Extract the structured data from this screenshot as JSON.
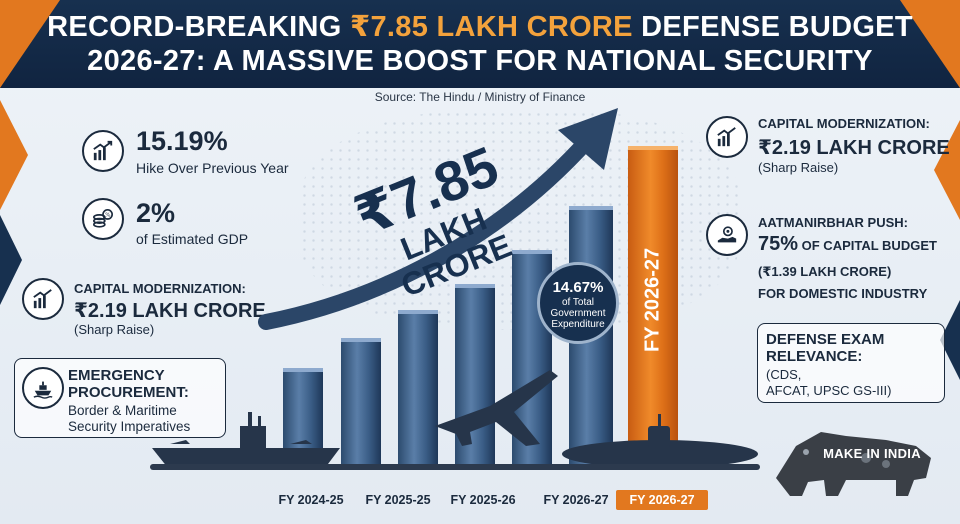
{
  "header": {
    "title_part1": "RECORD-BREAKING ",
    "title_highlight": "₹7.85 LAKH CRORE",
    "title_part2": " DEFENSE BUDGET",
    "title_line2": "2026-27: A MASSIVE BOOST FOR NATIONAL SECURITY"
  },
  "source": "Source: The Hindu / Ministry of Finance",
  "left_stats": {
    "hike": {
      "value": "15.19%",
      "label": "Hike Over Previous Year",
      "icon": "growth-chart-icon"
    },
    "gdp": {
      "value": "2%",
      "label": "of Estimated GDP",
      "icon": "coins-icon"
    },
    "capital": {
      "title": "CAPITAL MODERNIZATION:",
      "value": "₹2.19 LAKH CRORE",
      "note": "(Sharp Raise)",
      "icon": "growth-chart-icon"
    },
    "emergency": {
      "title_line1": "EMERGENCY",
      "title_line2": "PROCUREMENT:",
      "desc_line1": "Border & Maritime",
      "desc_line2": "Security Imperatives",
      "icon": "ship-icon"
    }
  },
  "right_stats": {
    "capital": {
      "title": "CAPITAL MODERNIZATION:",
      "value": "₹2.19 LAKH CRORE",
      "note": "(Sharp Raise)",
      "icon": "growth-chart-icon"
    },
    "aatmanirbhar": {
      "title": "AATMANIRBHAR PUSH:",
      "value": "75%",
      "value_suffix": " OF CAPITAL BUDGET",
      "line2": "(₹1.39 LAKH CRORE)",
      "line3": "FOR DOMESTIC INDUSTRY",
      "icon": "hand-gear-icon"
    },
    "exam": {
      "title_line1": "DEFENSE EXAM",
      "title_line2": "RELEVANCE:",
      "line1": "(CDS,",
      "line2": "AFCAT, UPSC GS-III)"
    }
  },
  "center": {
    "big_value": "₹7.85",
    "big_unit": "LAKH CRORE",
    "pct_value": "14.67%",
    "pct_label_line1": "of Total",
    "pct_label_line2": "Government",
    "pct_label_line3": "Expenditure",
    "highlight_bar_label": "FY 2026-27"
  },
  "axis_ticks": [
    "FY 2024-25",
    "FY 2025-25",
    "FY 2025-26",
    "FY 2026-27",
    "FY 2026-27"
  ],
  "make_in_india": "MAKE IN INDIA",
  "colors": {
    "navy": "#17304f",
    "orange": "#e2781f",
    "bar_blue": "#3a5d86"
  }
}
